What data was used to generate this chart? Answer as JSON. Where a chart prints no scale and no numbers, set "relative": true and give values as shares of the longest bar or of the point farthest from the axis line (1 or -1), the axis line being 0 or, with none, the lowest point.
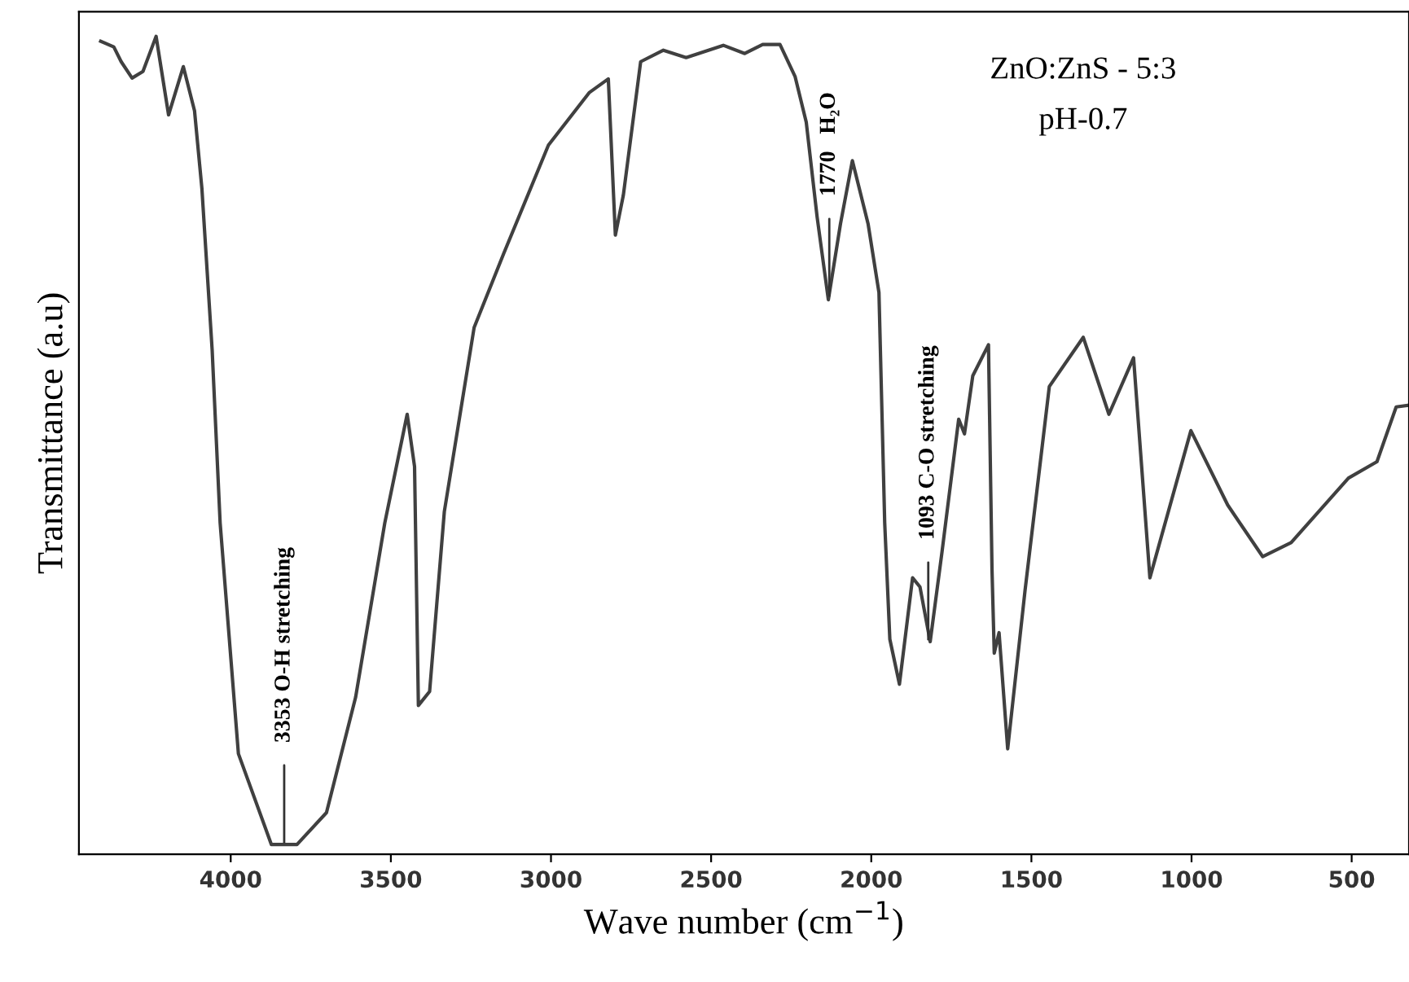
{
  "chart_data": {
    "type": "line",
    "relative": true,
    "xlabel": "Wave number (cm$^{−1}$)",
    "ylabel": "Transmittance (a.u)",
    "xlim": [
      4474,
      321
    ],
    "xticks": [
      4000,
      3500,
      3000,
      2500,
      2000,
      1500,
      1000,
      500
    ],
    "grid": false,
    "legend": false,
    "marker": "none",
    "line_style": "solid",
    "series": [
      {
        "color": "#404040",
        "x": [
          4406,
          4365,
          4342,
          4308,
          4274,
          4233,
          4194,
          4148,
          4113,
          4090,
          4058,
          4033,
          3976,
          3873,
          3793,
          3701,
          3610,
          3519,
          3449,
          3426,
          3414,
          3379,
          3333,
          3240,
          3147,
          3008,
          2881,
          2821,
          2799,
          2774,
          2720,
          2649,
          2578,
          2462,
          2395,
          2339,
          2285,
          2238,
          2203,
          2169,
          2134,
          2096,
          2059,
          2010,
          1976,
          1958,
          1942,
          1912,
          1871,
          1848,
          1816,
          1779,
          1727,
          1709,
          1683,
          1634,
          1623,
          1616,
          1601,
          1574,
          1520,
          1444,
          1338,
          1258,
          1181,
          1130,
          1002,
          887,
          778,
          689,
          510,
          421,
          361,
          321
        ],
        "values": [
          0.994,
          0.987,
          0.969,
          0.949,
          0.957,
          1.0,
          0.904,
          0.963,
          0.909,
          0.814,
          0.617,
          0.405,
          0.123,
          0.012,
          0.012,
          0.051,
          0.192,
          0.405,
          0.538,
          0.474,
          0.182,
          0.199,
          0.419,
          0.644,
          0.735,
          0.867,
          0.931,
          0.948,
          0.757,
          0.806,
          0.969,
          0.983,
          0.974,
          0.989,
          0.979,
          0.99,
          0.99,
          0.951,
          0.895,
          0.779,
          0.678,
          0.771,
          0.848,
          0.771,
          0.687,
          0.405,
          0.263,
          0.208,
          0.338,
          0.327,
          0.26,
          0.37,
          0.532,
          0.514,
          0.585,
          0.623,
          0.348,
          0.246,
          0.271,
          0.129,
          0.322,
          0.572,
          0.632,
          0.538,
          0.607,
          0.338,
          0.518,
          0.427,
          0.364,
          0.381,
          0.46,
          0.48,
          0.547,
          0.549
        ]
      }
    ],
    "annotations": [
      {
        "text": "3353 O-H stretching",
        "x": 3833,
        "y": 0.012
      },
      {
        "text": "1770   H₂O",
        "x": 2131,
        "y": 0.68
      },
      {
        "text": "1093 C-O stretching",
        "x": 1822,
        "y": 0.26
      },
      "ZnO:ZnS - 5:3",
      "pH-0.7"
    ]
  }
}
